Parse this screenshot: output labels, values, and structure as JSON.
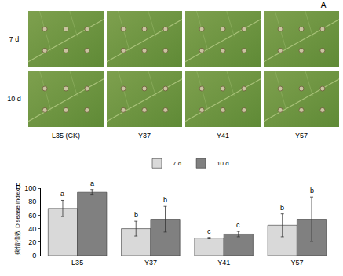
{
  "panel_a": {
    "label": "A",
    "rows": [
      "7 d",
      "10 d"
    ],
    "columns": [
      "L35 (CK)",
      "Y37",
      "Y41",
      "Y57"
    ]
  },
  "chart_data": {
    "type": "bar",
    "panel_label": "B",
    "y_label": "病情指数 Disease index",
    "categories": [
      "L35",
      "Y37",
      "Y41",
      "Y57"
    ],
    "series": [
      {
        "name": "7 d",
        "color": "#d9d9d9",
        "values": [
          70,
          40,
          26,
          45
        ],
        "errors": [
          12,
          11,
          1,
          17
        ],
        "letters": [
          "a",
          "b",
          "c",
          "b"
        ]
      },
      {
        "name": "10 d",
        "color": "#808080",
        "values": [
          94,
          54,
          32,
          54
        ],
        "errors": [
          4,
          19,
          4,
          33
        ],
        "letters": [
          "a",
          "b",
          "c",
          "b"
        ]
      }
    ],
    "ylim": [
      0,
      100
    ],
    "yticks": [
      0,
      20,
      40,
      60,
      80,
      100
    ],
    "grid": false,
    "legend": "top"
  }
}
